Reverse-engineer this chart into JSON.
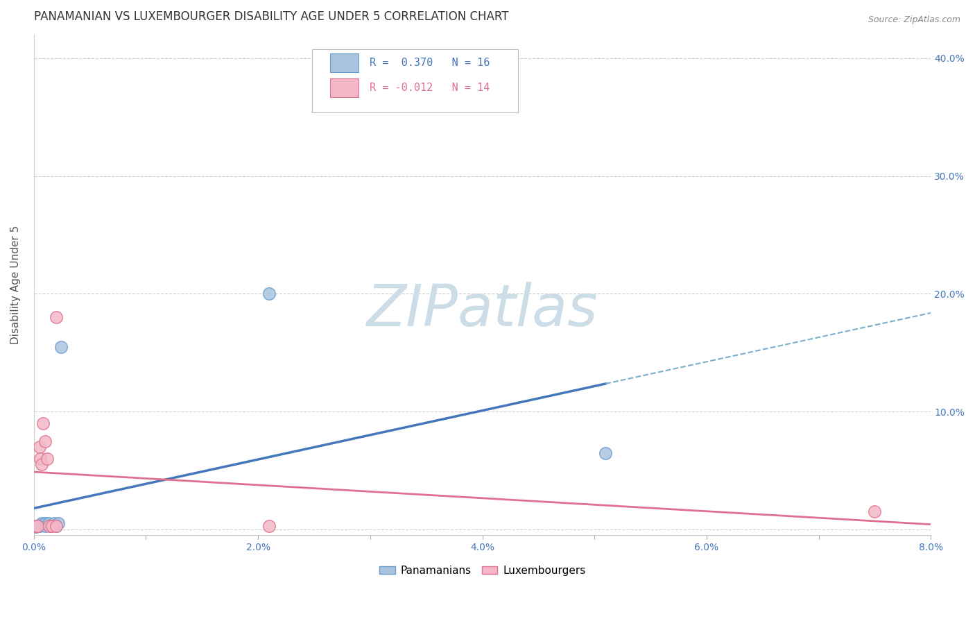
{
  "title": "PANAMANIAN VS LUXEMBOURGER DISABILITY AGE UNDER 5 CORRELATION CHART",
  "source": "Source: ZipAtlas.com",
  "ylabel": "Disability Age Under 5",
  "xlim": [
    0.0,
    0.08
  ],
  "ylim": [
    -0.005,
    0.42
  ],
  "xticks": [
    0.0,
    0.01,
    0.02,
    0.03,
    0.04,
    0.05,
    0.06,
    0.07,
    0.08
  ],
  "xtick_labels": [
    "0.0%",
    "",
    "2.0%",
    "",
    "4.0%",
    "",
    "6.0%",
    "",
    "8.0%"
  ],
  "yticks": [
    0.0,
    0.1,
    0.2,
    0.3,
    0.4
  ],
  "ytick_right_labels": [
    "",
    "10.0%",
    "20.0%",
    "30.0%",
    "40.0%"
  ],
  "grid_color": "#cccccc",
  "background_color": "#ffffff",
  "panamanian_color": "#aac4e0",
  "panamanian_edge_color": "#6699cc",
  "luxembourger_color": "#f4b8c8",
  "luxembourger_edge_color": "#e07090",
  "blue_line_color": "#4477bb",
  "pink_line_color": "#e07090",
  "dashed_line_color": "#7aaecc",
  "legend_R_pan": "R =  0.370",
  "legend_N_pan": "N = 16",
  "legend_R_lux": "R = -0.012",
  "legend_N_lux": "N = 14",
  "pan_x": [
    0.0002,
    0.0004,
    0.0005,
    0.0006,
    0.0007,
    0.0008,
    0.001,
    0.001,
    0.0013,
    0.0015,
    0.0018,
    0.002,
    0.0022,
    0.0024,
    0.021,
    0.051
  ],
  "pan_y": [
    0.002,
    0.003,
    0.003,
    0.004,
    0.005,
    0.004,
    0.003,
    0.005,
    0.005,
    0.003,
    0.005,
    0.003,
    0.005,
    0.155,
    0.2,
    0.065
  ],
  "lux_x": [
    0.0001,
    0.0003,
    0.0005,
    0.0006,
    0.0007,
    0.0008,
    0.001,
    0.0012,
    0.0014,
    0.0016,
    0.002,
    0.002,
    0.021,
    0.075
  ],
  "lux_y": [
    0.003,
    0.003,
    0.07,
    0.06,
    0.055,
    0.09,
    0.075,
    0.06,
    0.003,
    0.003,
    0.003,
    0.18,
    0.003,
    0.015
  ],
  "marker_size": 160,
  "watermark_text": "ZIPatlas",
  "watermark_color": "#ccdde8",
  "watermark_fontsize": 60,
  "blue_line_x_start": 0.0,
  "blue_line_x_solid_end": 0.051,
  "blue_line_x_dashed_end": 0.08
}
